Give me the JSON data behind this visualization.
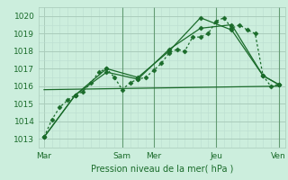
{
  "background_color": "#cceedd",
  "grid_color_major": "#aaccbb",
  "grid_color_minor": "#bbddd0",
  "line_color": "#1a6b2a",
  "ylabel": "Pression niveau de la mer( hPa )",
  "ylim": [
    1012.5,
    1020.5
  ],
  "yticks": [
    1013,
    1014,
    1015,
    1016,
    1017,
    1018,
    1019,
    1020
  ],
  "day_labels": [
    "Mar",
    "Sam",
    "Mer",
    "Jeu",
    "Ven"
  ],
  "day_positions": [
    0,
    60,
    84,
    132,
    180
  ],
  "xlim": [
    -4,
    185
  ],
  "series": [
    {
      "x": [
        0,
        6,
        12,
        18,
        24,
        30,
        36,
        42,
        48,
        54,
        60,
        66,
        72,
        78,
        84,
        90,
        96,
        102,
        108,
        114,
        120,
        126,
        132,
        138,
        144,
        150,
        156,
        162,
        168,
        174,
        180
      ],
      "y": [
        1013.1,
        1014.1,
        1014.8,
        1015.2,
        1015.5,
        1015.7,
        1016.2,
        1016.8,
        1017.0,
        1016.5,
        1015.8,
        1016.2,
        1016.4,
        1016.5,
        1016.9,
        1017.3,
        1017.9,
        1018.1,
        1018.0,
        1018.8,
        1018.8,
        1019.0,
        1019.7,
        1019.9,
        1019.3,
        1019.5,
        1019.2,
        1019.0,
        1016.6,
        1016.0,
        1016.1
      ],
      "style": "dotted",
      "marker": "D",
      "markersize": 2.5
    },
    {
      "x": [
        0,
        24,
        48,
        72,
        96,
        120,
        144,
        168,
        180
      ],
      "y": [
        1013.1,
        1015.5,
        1017.0,
        1016.5,
        1018.0,
        1019.9,
        1019.2,
        1016.6,
        1016.1
      ],
      "style": "solid",
      "marker": "D",
      "markersize": 2.5
    },
    {
      "x": [
        0,
        24,
        48,
        72,
        96,
        120,
        144,
        168,
        180
      ],
      "y": [
        1013.1,
        1015.5,
        1016.8,
        1016.4,
        1018.1,
        1019.3,
        1019.5,
        1016.6,
        1016.1
      ],
      "style": "solid",
      "marker": "D",
      "markersize": 2.5
    },
    {
      "x": [
        0,
        180
      ],
      "y": [
        1015.8,
        1016.0
      ],
      "style": "solid",
      "marker": null,
      "markersize": 0
    }
  ]
}
